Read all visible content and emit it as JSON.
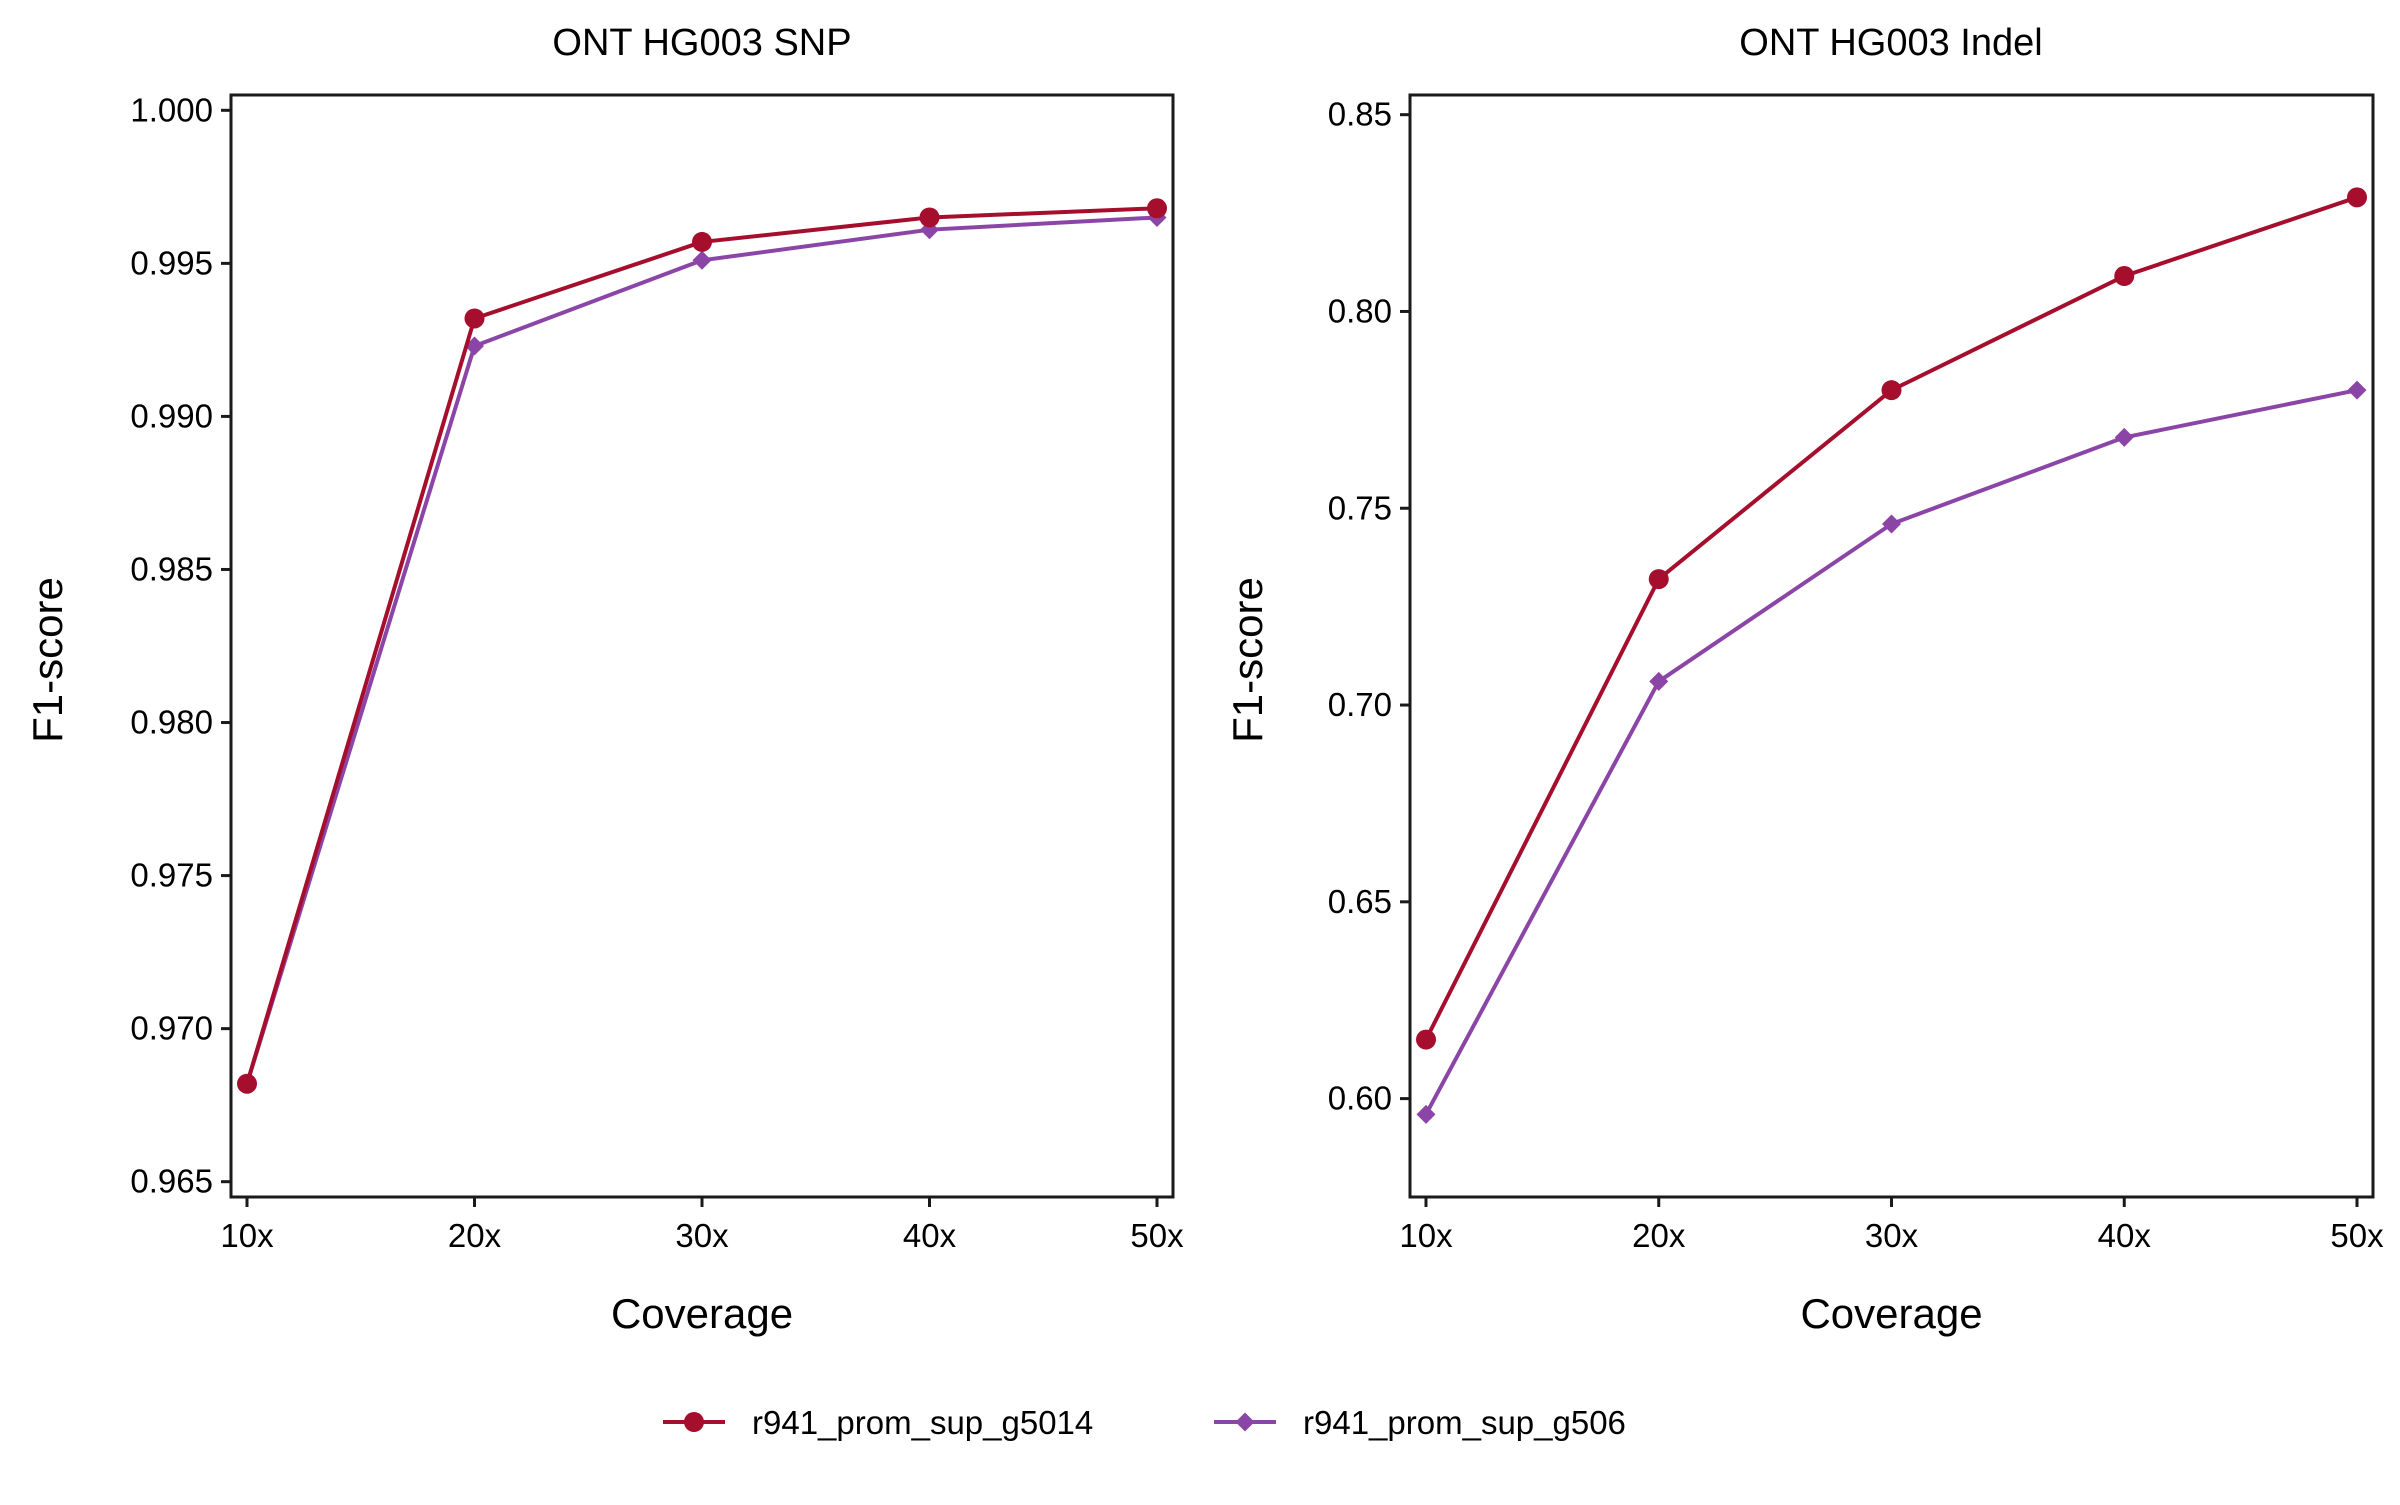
{
  "chart_data": [
    {
      "type": "line",
      "title": "ONT HG003 SNP",
      "xlabel": "Coverage",
      "ylabel": "F1-score",
      "categories": [
        "10x",
        "20x",
        "30x",
        "40x",
        "50x"
      ],
      "ylim": [
        0.9645,
        1.0005
      ],
      "yticks": [
        "0.965",
        "0.970",
        "0.975",
        "0.980",
        "0.985",
        "0.990",
        "0.995",
        "1.000"
      ],
      "series": [
        {
          "name": "r941_prom_sup_g5014",
          "values": [
            0.9682,
            0.9932,
            0.9957,
            0.9965,
            0.9968
          ]
        },
        {
          "name": "r941_prom_sup_g506",
          "values": [
            0.9682,
            0.9923,
            0.9951,
            0.9961,
            0.9965
          ]
        }
      ],
      "grid": false
    },
    {
      "type": "line",
      "title": "ONT HG003 Indel",
      "xlabel": "Coverage",
      "ylabel": "F1-score",
      "categories": [
        "10x",
        "20x",
        "30x",
        "40x",
        "50x"
      ],
      "ylim": [
        0.575,
        0.855
      ],
      "yticks": [
        "0.60",
        "0.65",
        "0.70",
        "0.75",
        "0.80",
        "0.85"
      ],
      "series": [
        {
          "name": "r941_prom_sup_g5014",
          "values": [
            0.615,
            0.732,
            0.78,
            0.809,
            0.829
          ]
        },
        {
          "name": "r941_prom_sup_g506",
          "values": [
            0.596,
            0.706,
            0.746,
            0.768,
            0.78
          ]
        }
      ],
      "grid": false
    }
  ],
  "legend": {
    "placement": "bottom",
    "items": [
      {
        "label": "r941_prom_sup_g5014",
        "color": "#A50F2D",
        "marker": "circle"
      },
      {
        "label": "r941_prom_sup_g506",
        "color": "#8B45A6",
        "marker": "diamond"
      }
    ]
  }
}
